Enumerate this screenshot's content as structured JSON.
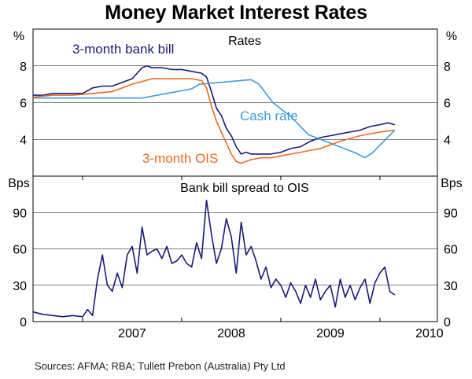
{
  "title": "Money Market Interest Rates",
  "source": "Sources: AFMA; RBA; Tullett Prebon (Australia) Pty Ltd",
  "colors": {
    "bank_bill": "#1a1a7a",
    "cash_rate": "#3b9be0",
    "ois": "#ef6a1f",
    "spread": "#1a1a7a",
    "grid": "#000000"
  },
  "chart_data": [
    {
      "type": "line",
      "title": "Rates",
      "unit_left": "%",
      "unit_right": "%",
      "ylim": [
        2,
        10
      ],
      "yticks": [
        4,
        6,
        8
      ],
      "ytick_labels": [
        "4",
        "6",
        "8"
      ],
      "x_range": [
        2006.5,
        2010.58
      ],
      "grid": true,
      "series": [
        {
          "name": "3-month bank bill",
          "x": [
            2006.5,
            2006.6,
            2006.7,
            2006.8,
            2006.9,
            2007.0,
            2007.1,
            2007.2,
            2007.3,
            2007.4,
            2007.5,
            2007.55,
            2007.6,
            2007.65,
            2007.7,
            2007.8,
            2007.9,
            2008.0,
            2008.1,
            2008.2,
            2008.25,
            2008.3,
            2008.35,
            2008.4,
            2008.45,
            2008.5,
            2008.55,
            2008.6,
            2008.65,
            2008.7,
            2008.8,
            2008.9,
            2009.0,
            2009.1,
            2009.2,
            2009.3,
            2009.4,
            2009.5,
            2009.6,
            2009.7,
            2009.8,
            2009.9,
            2010.0,
            2010.08,
            2010.15
          ],
          "values": [
            6.4,
            6.4,
            6.5,
            6.5,
            6.5,
            6.5,
            6.8,
            6.9,
            6.9,
            7.1,
            7.3,
            7.6,
            7.9,
            8.0,
            7.9,
            7.9,
            7.8,
            7.8,
            7.7,
            7.6,
            7.4,
            6.6,
            5.7,
            5.3,
            4.6,
            4.2,
            3.6,
            3.2,
            3.3,
            3.2,
            3.2,
            3.2,
            3.3,
            3.5,
            3.6,
            3.9,
            4.1,
            4.2,
            4.3,
            4.4,
            4.5,
            4.7,
            4.8,
            4.9,
            4.8
          ]
        },
        {
          "name": "Cash rate",
          "x": [
            2006.5,
            2006.59,
            2006.59,
            2006.84,
            2006.84,
            2007.6,
            2007.6,
            2007.85,
            2007.85,
            2008.1,
            2008.1,
            2008.18,
            2008.18,
            2008.7,
            2008.7,
            2008.78,
            2008.78,
            2008.92,
            2008.92,
            2009.1,
            2009.1,
            2009.28,
            2009.28,
            2009.76,
            2009.76,
            2009.85,
            2009.85,
            2009.92,
            2009.92,
            2010.15
          ],
          "values": [
            6.25,
            6.25,
            6.25,
            6.25,
            6.25,
            6.25,
            6.25,
            6.5,
            6.5,
            6.75,
            6.75,
            7.0,
            7.0,
            7.25,
            7.25,
            7.0,
            7.0,
            6.0,
            6.0,
            5.25,
            5.25,
            4.25,
            4.25,
            3.25,
            3.25,
            3.0,
            3.0,
            3.25,
            3.25,
            4.5
          ]
        },
        {
          "name": "3-month OIS",
          "x": [
            2006.5,
            2006.7,
            2006.9,
            2007.1,
            2007.3,
            2007.5,
            2007.7,
            2007.9,
            2008.1,
            2008.2,
            2008.25,
            2008.3,
            2008.35,
            2008.4,
            2008.45,
            2008.5,
            2008.55,
            2008.6,
            2008.7,
            2008.8,
            2008.9,
            2009.0,
            2009.2,
            2009.4,
            2009.6,
            2009.8,
            2010.0,
            2010.15
          ],
          "values": [
            6.3,
            6.4,
            6.4,
            6.5,
            6.6,
            7.0,
            7.3,
            7.3,
            7.3,
            7.2,
            6.8,
            5.8,
            5.0,
            4.4,
            3.8,
            3.2,
            2.8,
            2.7,
            2.9,
            3.0,
            3.0,
            3.1,
            3.3,
            3.5,
            3.9,
            4.2,
            4.4,
            4.5
          ]
        }
      ],
      "annotations": [
        {
          "text": "3-month bank bill",
          "color": "#1a1a7a"
        },
        {
          "text": "Cash rate",
          "color": "#3b9be0"
        },
        {
          "text": "3-month OIS",
          "color": "#ef6a1f"
        }
      ]
    },
    {
      "type": "line",
      "title": "Bank bill spread to OIS",
      "unit_left": "Bps",
      "unit_right": "Bps",
      "ylim": [
        0,
        120
      ],
      "yticks": [
        0,
        30,
        60,
        90
      ],
      "ytick_labels": [
        "0",
        "30",
        "60",
        "90"
      ],
      "x_range": [
        2006.5,
        2010.58
      ],
      "xticks": [
        "2007",
        "2008",
        "2009",
        "2010"
      ],
      "grid": true,
      "series": [
        {
          "name": "Bank bill spread to OIS",
          "x": [
            2006.5,
            2006.6,
            2006.7,
            2006.8,
            2006.9,
            2007.0,
            2007.05,
            2007.1,
            2007.15,
            2007.2,
            2007.25,
            2007.3,
            2007.35,
            2007.4,
            2007.45,
            2007.5,
            2007.55,
            2007.6,
            2007.65,
            2007.7,
            2007.75,
            2007.8,
            2007.85,
            2007.9,
            2007.95,
            2008.0,
            2008.05,
            2008.1,
            2008.15,
            2008.2,
            2008.25,
            2008.3,
            2008.35,
            2008.4,
            2008.45,
            2008.5,
            2008.55,
            2008.6,
            2008.65,
            2008.7,
            2008.75,
            2008.8,
            2008.85,
            2008.9,
            2008.95,
            2009.0,
            2009.05,
            2009.1,
            2009.15,
            2009.2,
            2009.25,
            2009.3,
            2009.35,
            2009.4,
            2009.45,
            2009.5,
            2009.55,
            2009.6,
            2009.65,
            2009.7,
            2009.75,
            2009.8,
            2009.85,
            2009.9,
            2009.95,
            2010.0,
            2010.05,
            2010.1,
            2010.15
          ],
          "values": [
            8,
            6,
            5,
            4,
            5,
            4,
            10,
            5,
            35,
            55,
            30,
            25,
            40,
            28,
            55,
            62,
            40,
            78,
            55,
            58,
            60,
            52,
            62,
            48,
            50,
            55,
            48,
            45,
            65,
            52,
            100,
            72,
            48,
            60,
            85,
            70,
            40,
            82,
            55,
            62,
            50,
            35,
            45,
            28,
            35,
            30,
            20,
            32,
            25,
            15,
            30,
            20,
            35,
            18,
            25,
            30,
            12,
            35,
            20,
            30,
            18,
            28,
            35,
            15,
            32,
            40,
            45,
            25,
            22
          ]
        }
      ]
    }
  ]
}
